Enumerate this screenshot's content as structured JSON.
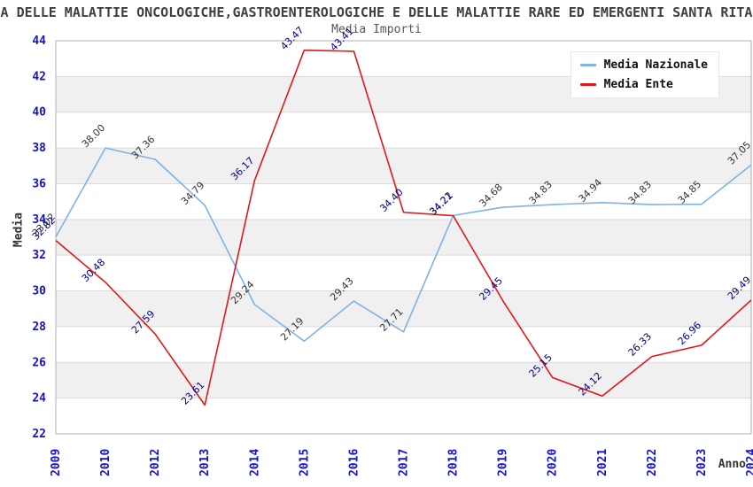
{
  "title": "A DELLE MALATTIE ONCOLOGICHE,GASTROENTEROLOGICHE E DELLE MALATTIE RARE ED EMERGENTI SANTA RITA",
  "subtitle": "Media Importi",
  "chart_data": {
    "type": "line",
    "categories": [
      "2009",
      "2010",
      "2012",
      "2013",
      "2014",
      "2015",
      "2016",
      "2017",
      "2018",
      "2019",
      "2020",
      "2021",
      "2022",
      "2023",
      "2024"
    ],
    "series": [
      {
        "name": "Media Nazionale",
        "color": "#7fb2e5",
        "label_color": "#333333",
        "values": [
          33.02,
          38.0,
          37.36,
          34.79,
          29.24,
          27.19,
          29.43,
          27.71,
          34.22,
          34.68,
          34.83,
          34.94,
          34.83,
          34.85,
          37.05
        ]
      },
      {
        "name": "Media Ente",
        "color": "#e01818",
        "label_color": "#000090",
        "values": [
          32.82,
          30.48,
          27.59,
          23.61,
          36.17,
          43.47,
          43.41,
          34.4,
          34.21,
          29.45,
          25.15,
          24.12,
          26.33,
          26.96,
          29.49
        ]
      }
    ],
    "xlabel": "Anno",
    "ylabel": "Media",
    "ylim": [
      22,
      44
    ],
    "yticks": [
      22,
      24,
      26,
      28,
      30,
      32,
      34,
      36,
      38,
      40,
      42,
      44
    ],
    "grid": "horizontal-bands",
    "legend_position": "top-right"
  },
  "colors": {
    "tick_label": "#1414cc",
    "grid_line": "#dcdcdc",
    "band_fill": "#f0f0f0",
    "axis_border": "#b0b0b0"
  }
}
